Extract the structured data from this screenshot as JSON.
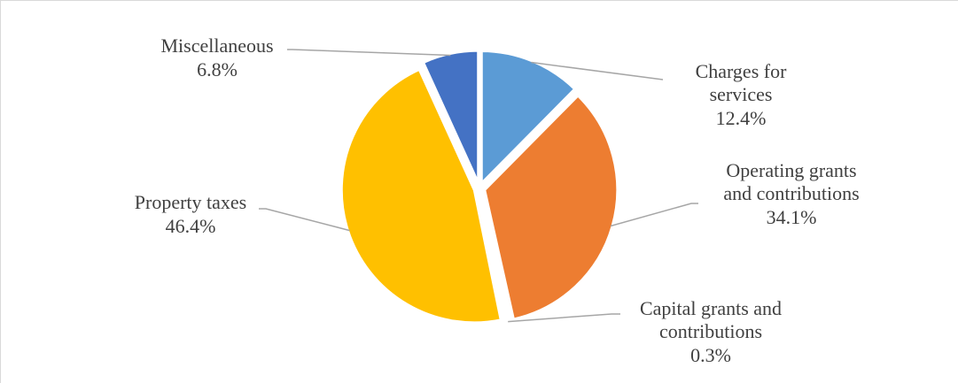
{
  "chart_data": {
    "type": "pie",
    "title": "",
    "slices": [
      {
        "label_lines": [
          "Charges for",
          "services"
        ],
        "percent_label": "12.4%",
        "value": 12.4,
        "color": "#5b9bd5"
      },
      {
        "label_lines": [
          "Operating grants",
          "and contributions"
        ],
        "percent_label": "34.1%",
        "value": 34.1,
        "color": "#ed7d31"
      },
      {
        "label_lines": [
          "Capital grants and",
          "contributions"
        ],
        "percent_label": "0.3%",
        "value": 0.3,
        "color": "#a5a5a5"
      },
      {
        "label_lines": [
          "Property taxes"
        ],
        "percent_label": "46.4%",
        "value": 46.4,
        "color": "#ffc000"
      },
      {
        "label_lines": [
          "Miscellaneous"
        ],
        "percent_label": "6.8%",
        "value": 6.8,
        "color": "#4472c4"
      }
    ],
    "legend": "none",
    "start_angle_deg": 0,
    "exploded": true
  }
}
